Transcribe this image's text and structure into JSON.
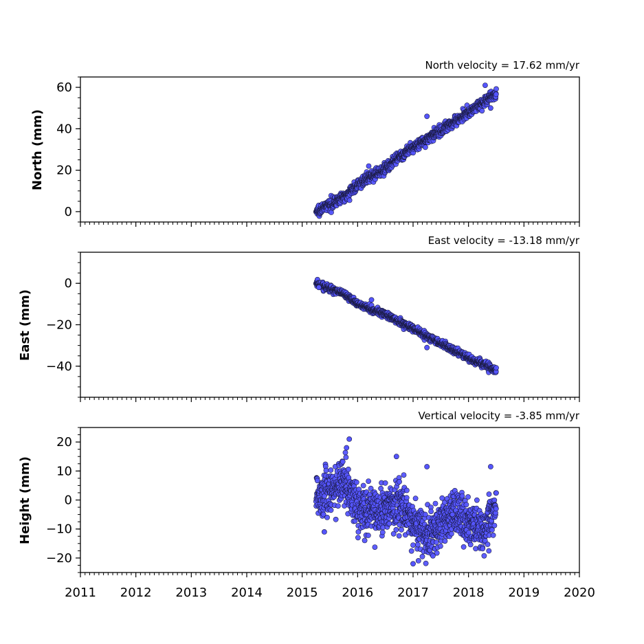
{
  "chart_data": [
    {
      "type": "scatter",
      "title": "North velocity = 17.62 mm/yr",
      "ylabel": "North (mm)",
      "xlim": [
        2011,
        2020
      ],
      "ylim": [
        -5,
        65
      ],
      "yticks": [
        0,
        20,
        40,
        60
      ],
      "x_range": [
        2015.25,
        2018.5
      ],
      "trend": [
        [
          2015.25,
          0
        ],
        [
          2015.75,
          7
        ],
        [
          2016.0,
          13
        ],
        [
          2016.5,
          21
        ],
        [
          2017.0,
          31
        ],
        [
          2017.5,
          39
        ],
        [
          2018.0,
          48
        ],
        [
          2018.5,
          57
        ]
      ],
      "outliers": [
        [
          2017.25,
          46
        ],
        [
          2018.3,
          61
        ],
        [
          2018.4,
          50
        ],
        [
          2016.2,
          22
        ]
      ],
      "scatter_std": 1.2
    },
    {
      "type": "scatter",
      "title": "East velocity = -13.18 mm/yr",
      "ylabel": "East (mm)",
      "xlim": [
        2011,
        2020
      ],
      "ylim": [
        -55,
        15
      ],
      "yticks": [
        -40,
        -20,
        0
      ],
      "x_range": [
        2015.25,
        2018.5
      ],
      "trend": [
        [
          2015.25,
          0
        ],
        [
          2015.75,
          -5
        ],
        [
          2016.0,
          -10
        ],
        [
          2016.5,
          -15
        ],
        [
          2017.0,
          -22
        ],
        [
          2017.5,
          -29
        ],
        [
          2018.0,
          -36
        ],
        [
          2018.5,
          -42
        ]
      ],
      "outliers": [
        [
          2016.25,
          -8
        ],
        [
          2017.25,
          -31
        ],
        [
          2015.3,
          -2
        ]
      ],
      "scatter_std": 0.8
    },
    {
      "type": "scatter",
      "title": "Vertical velocity = -3.85 mm/yr",
      "ylabel": "Height (mm)",
      "xlim": [
        2011,
        2020
      ],
      "ylim": [
        -25,
        25
      ],
      "yticks": [
        -20,
        -10,
        0,
        10,
        20
      ],
      "xticks": [
        2011,
        2012,
        2013,
        2014,
        2015,
        2016,
        2017,
        2018,
        2019,
        2020
      ],
      "x_range": [
        2015.25,
        2018.5
      ],
      "trend": [
        [
          2015.25,
          2
        ],
        [
          2015.5,
          3
        ],
        [
          2015.75,
          7
        ],
        [
          2016.0,
          -3
        ],
        [
          2016.5,
          -3
        ],
        [
          2016.75,
          -1
        ],
        [
          2017.0,
          -8
        ],
        [
          2017.25,
          -12
        ],
        [
          2017.5,
          -8
        ],
        [
          2017.75,
          -5
        ],
        [
          2018.0,
          -8
        ],
        [
          2018.25,
          -10
        ],
        [
          2018.5,
          -2
        ]
      ],
      "outliers": [
        [
          2015.85,
          21
        ],
        [
          2015.8,
          18
        ],
        [
          2017.0,
          -22
        ],
        [
          2016.7,
          15
        ],
        [
          2018.4,
          11.5
        ],
        [
          2017.25,
          11.5
        ],
        [
          2015.4,
          -11
        ]
      ],
      "scatter_std": 4.0
    }
  ],
  "colors": {
    "marker_fill": "#5555ff",
    "marker_edge": "#1a1a40"
  }
}
